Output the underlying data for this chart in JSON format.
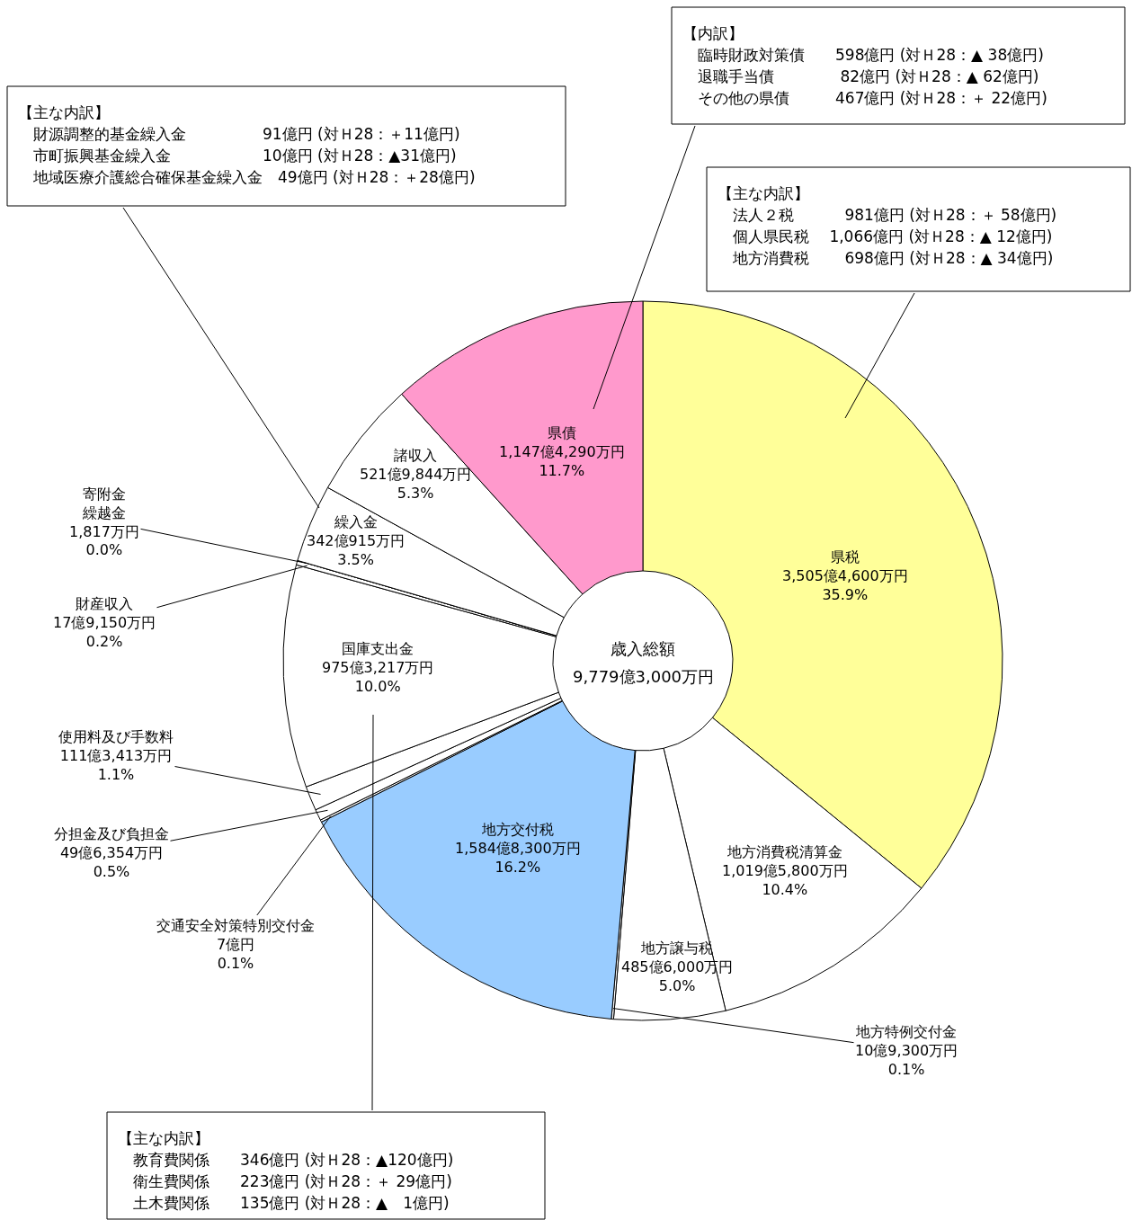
{
  "chart_data": {
    "type": "donut",
    "categories": [
      "県税",
      "地方消費税清算金",
      "地方譲与税",
      "地方特例交付金",
      "地方交付税",
      "交通安全対策特別交付金",
      "分担金及び負担金",
      "使用料及び手数料",
      "国庫支出金",
      "財産収入",
      "寄附金繰越金",
      "繰入金",
      "諸収入",
      "県債"
    ],
    "values": [
      35.9,
      10.4,
      5.0,
      0.1,
      16.2,
      0.1,
      0.5,
      1.1,
      10.0,
      0.2,
      0.0,
      3.5,
      5.3,
      11.7
    ],
    "colors": [
      "#ffff99",
      "#ffffff",
      "#ffffff",
      "#ffffff",
      "#99ccff",
      "#ffffff",
      "#ffffff",
      "#ffffff",
      "#ffffff",
      "#ffffff",
      "#ffffff",
      "#ffffff",
      "#ffffff",
      "#ff99cc"
    ],
    "value_labels": [
      "3,505億4,600万円\n35.9%",
      "1,019億5,800万円\n10.4%",
      "485億6,000万円\n5.0%",
      "10億9,300万円\n0.1%",
      "1,584億8,300万円\n16.2%",
      "7億円\n0.1%",
      "49億6,354万円\n0.5%",
      "111億3,413万円\n1.1%",
      "975億3,217万円\n10.0%",
      "17億9,150万円\n0.2%",
      "1,817万円\n0.0%",
      "342億915万円\n3.5%",
      "521億9,844万円\n5.3%",
      "1,147億4,290万円\n11.7%"
    ],
    "annotations": [
      "歳入総額",
      "9,779億3,000万円",
      "【内訳】",
      "　臨時財政対策債　　598億円 (対Ｈ28：▲ 38億円)",
      "　退職手当債　　　　 82億円 (対Ｈ28：▲ 62億円)",
      "　その他の県債　　　467億円 (対Ｈ28：＋ 22億円)",
      "【主な内訳】",
      "　法人２税　　　 981億円 (対Ｈ28：＋ 58億円)",
      "　個人県民税　 1,066億円 (対Ｈ28：▲ 12億円)",
      "　地方消費税　　 698億円 (対Ｈ28：▲ 34億円)",
      "【主な内訳】",
      "　財源調整的基金繰入金　　　　　91億円 (対Ｈ28：＋11億円)",
      "　市町振興基金繰入金　　　　　　10億円 (対Ｈ28：▲31億円)",
      "　地域医療介護総合確保基金繰入金　49億円 (対Ｈ28：＋28億円)",
      "【主な内訳】",
      "　教育費関係　　346億円 (対Ｈ28：▲120億円)",
      "　衛生費関係　　223億円 (対Ｈ28：＋ 29億円)",
      "　土木費関係　　135億円 (対Ｈ28：▲　1億円)"
    ]
  }
}
